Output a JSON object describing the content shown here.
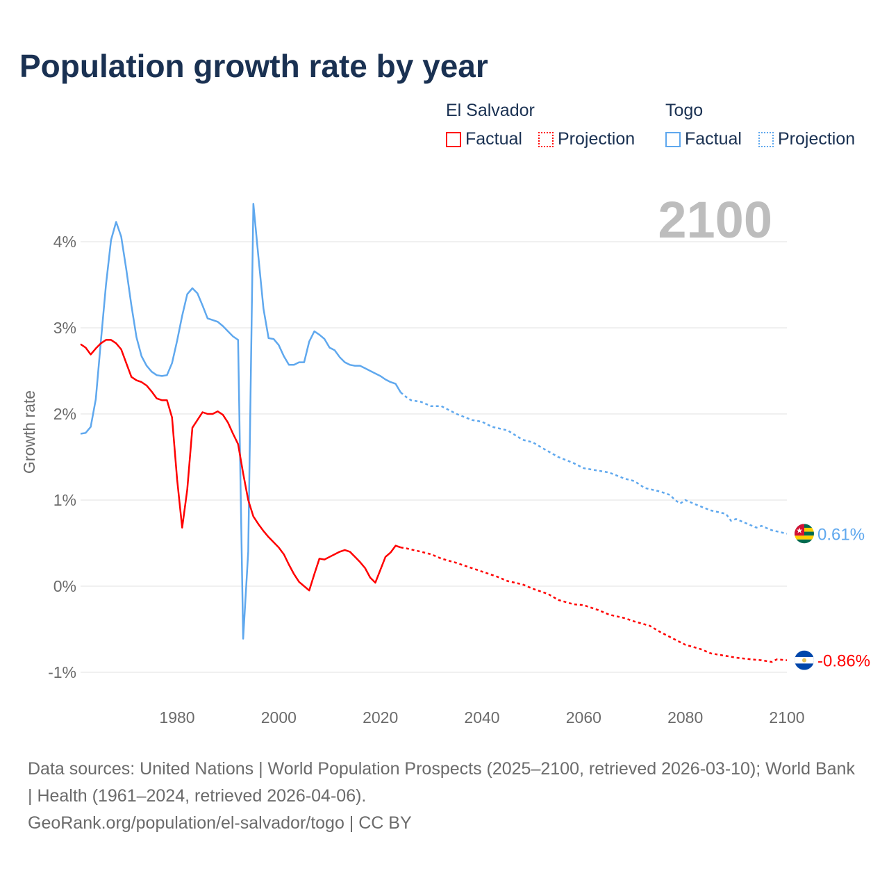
{
  "title": "Population growth rate by year",
  "legend": {
    "groups": [
      {
        "name": "El Salvador",
        "color": "#ff0000",
        "factual": "Factual",
        "projection": "Projection"
      },
      {
        "name": "Togo",
        "color": "#5fa8ee",
        "factual": "Factual",
        "projection": "Projection"
      }
    ]
  },
  "chart_data": {
    "type": "line",
    "title": "Population growth rate by year",
    "xlabel": "",
    "ylabel": "Growth rate",
    "xlim": [
      1961,
      2100
    ],
    "ylim": [
      -1.3,
      4.6
    ],
    "x_ticks": [
      1980,
      2000,
      2020,
      2040,
      2060,
      2080,
      2100
    ],
    "x_tick_labels": [
      "1980",
      "2000",
      "2020",
      "2040",
      "2060",
      "2080",
      "2100"
    ],
    "y_ticks": [
      -1,
      0,
      1,
      2,
      3,
      4
    ],
    "y_tick_labels": [
      "-1%",
      "0%",
      "1%",
      "2%",
      "3%",
      "4%"
    ],
    "grid": true,
    "year_label": "2100",
    "series": [
      {
        "name": "Togo",
        "color": "#5fa8ee",
        "end_label": "0.61%",
        "factual": {
          "x": [
            1961,
            1962,
            1963,
            1964,
            1965,
            1966,
            1967,
            1968,
            1969,
            1970,
            1971,
            1972,
            1973,
            1974,
            1975,
            1976,
            1977,
            1978,
            1979,
            1980,
            1981,
            1982,
            1983,
            1984,
            1985,
            1986,
            1987,
            1988,
            1989,
            1990,
            1991,
            1992,
            1993,
            1994,
            1995,
            1996,
            1997,
            1998,
            1999,
            2000,
            2001,
            2002,
            2003,
            2004,
            2005,
            2006,
            2007,
            2008,
            2009,
            2010,
            2011,
            2012,
            2013,
            2014,
            2015,
            2016,
            2017,
            2018,
            2019,
            2020,
            2021,
            2022,
            2023,
            2024
          ],
          "y": [
            1.77,
            1.78,
            1.85,
            2.17,
            2.85,
            3.5,
            4.02,
            4.23,
            4.06,
            3.68,
            3.26,
            2.89,
            2.67,
            2.56,
            2.49,
            2.45,
            2.44,
            2.45,
            2.59,
            2.85,
            3.14,
            3.39,
            3.46,
            3.4,
            3.26,
            3.11,
            3.09,
            3.07,
            3.02,
            2.96,
            2.9,
            2.86,
            -0.61,
            0.4,
            4.44,
            3.82,
            3.22,
            2.88,
            2.87,
            2.8,
            2.67,
            2.57,
            2.57,
            2.6,
            2.6,
            2.84,
            2.96,
            2.92,
            2.87,
            2.77,
            2.74,
            2.66,
            2.6,
            2.57,
            2.56,
            2.56,
            2.53,
            2.5,
            2.47,
            2.44,
            2.4,
            2.37,
            2.35,
            2.25
          ]
        },
        "projection": {
          "x": [
            2024,
            2025,
            2026,
            2028,
            2030,
            2032,
            2035,
            2038,
            2040,
            2042,
            2045,
            2048,
            2050,
            2052,
            2055,
            2058,
            2060,
            2062,
            2065,
            2068,
            2070,
            2072,
            2075,
            2077,
            2078,
            2079,
            2080,
            2082,
            2085,
            2088,
            2089,
            2090,
            2092,
            2094,
            2095,
            2097,
            2100
          ],
          "y": [
            2.25,
            2.2,
            2.16,
            2.14,
            2.09,
            2.09,
            2.0,
            1.93,
            1.91,
            1.85,
            1.81,
            1.7,
            1.67,
            1.6,
            1.5,
            1.43,
            1.37,
            1.35,
            1.32,
            1.25,
            1.22,
            1.14,
            1.1,
            1.06,
            1.0,
            0.96,
            1.0,
            0.95,
            0.88,
            0.84,
            0.76,
            0.78,
            0.73,
            0.68,
            0.7,
            0.65,
            0.61
          ]
        }
      },
      {
        "name": "El Salvador",
        "color": "#ff0000",
        "end_label": "-0.86%",
        "factual": {
          "x": [
            1961,
            1962,
            1963,
            1964,
            1965,
            1966,
            1967,
            1968,
            1969,
            1970,
            1971,
            1972,
            1973,
            1974,
            1975,
            1976,
            1977,
            1978,
            1979,
            1980,
            1981,
            1982,
            1983,
            1984,
            1985,
            1986,
            1987,
            1988,
            1989,
            1990,
            1991,
            1992,
            1993,
            1994,
            1995,
            1996,
            1997,
            1998,
            1999,
            2000,
            2001,
            2002,
            2003,
            2004,
            2005,
            2006,
            2007,
            2008,
            2009,
            2010,
            2011,
            2012,
            2013,
            2014,
            2015,
            2016,
            2017,
            2018,
            2019,
            2020,
            2021,
            2022,
            2023,
            2024
          ],
          "y": [
            2.81,
            2.77,
            2.69,
            2.76,
            2.82,
            2.86,
            2.86,
            2.82,
            2.75,
            2.59,
            2.43,
            2.39,
            2.37,
            2.33,
            2.26,
            2.18,
            2.16,
            2.16,
            1.96,
            1.24,
            0.68,
            1.12,
            1.84,
            1.93,
            2.02,
            2.0,
            2.0,
            2.03,
            1.99,
            1.9,
            1.77,
            1.65,
            1.31,
            1.0,
            0.81,
            0.72,
            0.64,
            0.57,
            0.51,
            0.45,
            0.37,
            0.25,
            0.14,
            0.05,
            0.0,
            -0.05,
            0.14,
            0.32,
            0.31,
            0.34,
            0.37,
            0.4,
            0.42,
            0.4,
            0.34,
            0.28,
            0.21,
            0.1,
            0.04,
            0.19,
            0.34,
            0.39,
            0.47,
            0.45
          ]
        },
        "projection": {
          "x": [
            2024,
            2025,
            2028,
            2030,
            2032,
            2035,
            2038,
            2040,
            2043,
            2045,
            2048,
            2050,
            2053,
            2055,
            2058,
            2060,
            2063,
            2065,
            2068,
            2070,
            2073,
            2075,
            2078,
            2080,
            2083,
            2085,
            2088,
            2090,
            2093,
            2095,
            2097,
            2098,
            2100
          ],
          "y": [
            0.45,
            0.44,
            0.4,
            0.37,
            0.32,
            0.27,
            0.21,
            0.17,
            0.11,
            0.06,
            0.02,
            -0.03,
            -0.09,
            -0.16,
            -0.21,
            -0.22,
            -0.28,
            -0.33,
            -0.37,
            -0.41,
            -0.46,
            -0.53,
            -0.62,
            -0.68,
            -0.73,
            -0.78,
            -0.81,
            -0.83,
            -0.85,
            -0.86,
            -0.88,
            -0.85,
            -0.86
          ]
        }
      }
    ]
  },
  "footer": {
    "sources": "Data sources: United Nations | World Population Prospects (2025–2100, retrieved 2026-03-10); World Bank | Health (1961–2024, retrieved 2026-04-06).",
    "credit": "GeoRank.org/population/el-salvador/togo | CC BY"
  }
}
